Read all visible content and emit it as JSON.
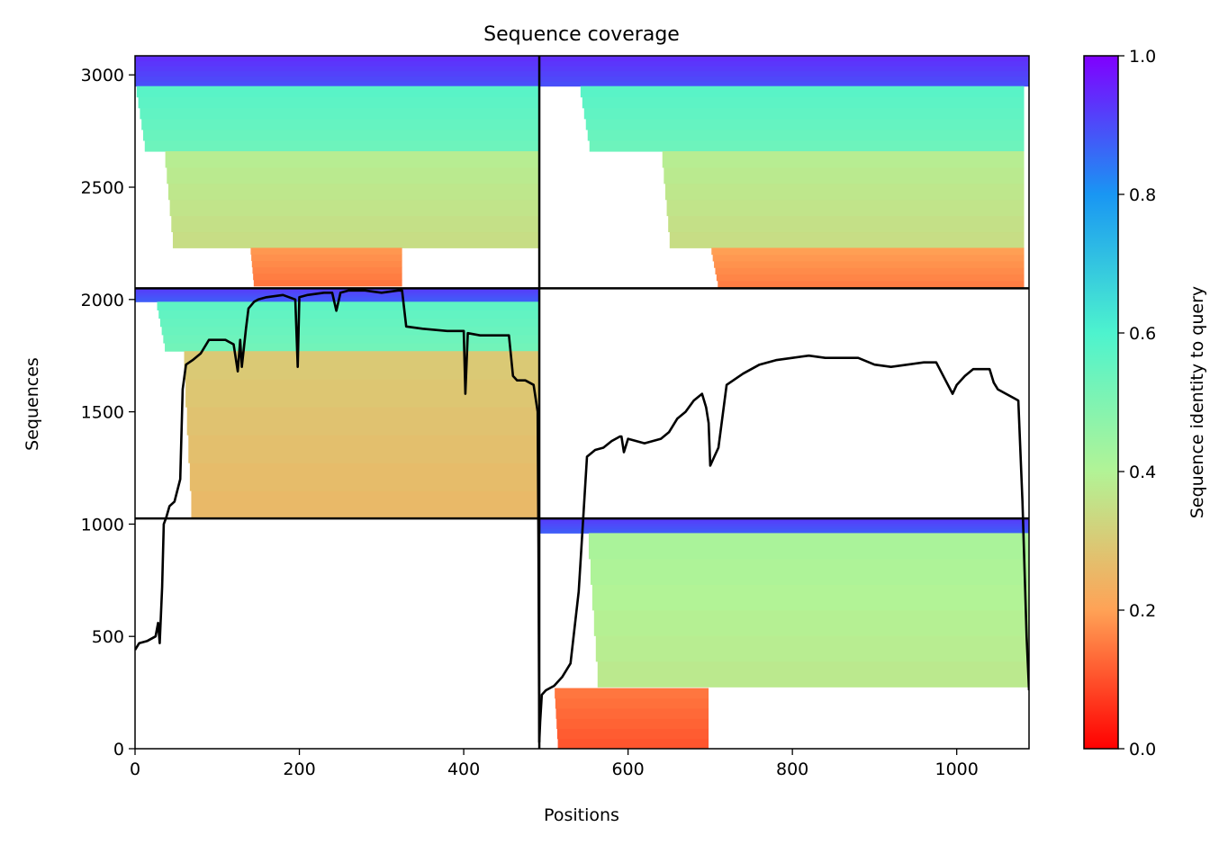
{
  "chart_data": {
    "type": "heatmap",
    "title": "Sequence coverage",
    "xlabel": "Positions",
    "ylabel": "Sequences",
    "xlim": [
      0,
      1088
    ],
    "ylim": [
      0,
      3085
    ],
    "xticks": [
      0,
      200,
      400,
      600,
      800,
      1000
    ],
    "yticks": [
      0,
      500,
      1000,
      1500,
      2000,
      2500,
      3000
    ],
    "colorbar": {
      "label": "Sequence identity to query",
      "range": [
        0.0,
        1.0
      ],
      "ticks": [
        0.0,
        0.2,
        0.4,
        0.6,
        0.8,
        1.0
      ],
      "colormap": "rainbow_r",
      "colors": [
        "#ff0000",
        "#ffa256",
        "#b2f396",
        "#4df3ce",
        "#1996f3",
        "#8000ff"
      ]
    },
    "chain_boundaries": {
      "x": 492,
      "y": [
        1025,
        2050
      ]
    },
    "msa_blocks": [
      {
        "name": "block-top-left",
        "x0": 0,
        "x1": 492,
        "y0": 2050,
        "y1": 3085,
        "bands": [
          {
            "y0": 2950,
            "y1": 3085,
            "identity": 0.92,
            "x0": 0,
            "x1": 492
          },
          {
            "y0": 2660,
            "y1": 2950,
            "identity": 0.56,
            "x0": 0,
            "x1": 492
          },
          {
            "y0": 2230,
            "y1": 2660,
            "identity": 0.37,
            "x0": 35,
            "x1": 492
          },
          {
            "y0": 2060,
            "y1": 2230,
            "identity": 0.17,
            "x0": 140,
            "x1": 325
          }
        ]
      },
      {
        "name": "block-top-right",
        "x0": 492,
        "x1": 1088,
        "y0": 2050,
        "y1": 3085,
        "bands": [
          {
            "y0": 2950,
            "y1": 3085,
            "identity": 0.92,
            "x0": 492,
            "x1": 1088
          },
          {
            "y0": 2660,
            "y1": 2950,
            "identity": 0.56,
            "x0": 540,
            "x1": 1082
          },
          {
            "y0": 2230,
            "y1": 2660,
            "identity": 0.37,
            "x0": 640,
            "x1": 1082
          },
          {
            "y0": 2055,
            "y1": 2230,
            "identity": 0.18,
            "x0": 700,
            "x1": 1082
          }
        ]
      },
      {
        "name": "block-middle-left",
        "x0": 0,
        "x1": 492,
        "y0": 1025,
        "y1": 2050,
        "bands": [
          {
            "y0": 1990,
            "y1": 2050,
            "identity": 0.9,
            "x0": 0,
            "x1": 492
          },
          {
            "y0": 1770,
            "y1": 1990,
            "identity": 0.55,
            "x0": 25,
            "x1": 492
          },
          {
            "y0": 1025,
            "y1": 1770,
            "identity": 0.28,
            "x0": 58,
            "x1": 492
          }
        ]
      },
      {
        "name": "block-bottom-right",
        "x0": 492,
        "x1": 1088,
        "y0": 0,
        "y1": 1025,
        "bands": [
          {
            "y0": 960,
            "y1": 1025,
            "identity": 0.9,
            "x0": 492,
            "x1": 1088
          },
          {
            "y0": 275,
            "y1": 960,
            "identity": 0.4,
            "x0": 550,
            "x1": 1088
          },
          {
            "y0": 0,
            "y1": 270,
            "identity": 0.13,
            "x0": 510,
            "x1": 698
          }
        ]
      }
    ],
    "coverage_line": {
      "color": "#000000",
      "x": [
        0,
        5,
        15,
        25,
        28,
        30,
        33,
        35,
        38,
        42,
        48,
        55,
        58,
        62,
        70,
        80,
        90,
        95,
        110,
        120,
        125,
        128,
        130,
        135,
        138,
        145,
        150,
        160,
        180,
        195,
        198,
        200,
        210,
        230,
        240,
        245,
        250,
        260,
        280,
        300,
        320,
        325,
        330,
        350,
        380,
        400,
        402,
        405,
        420,
        440,
        455,
        460,
        465,
        475,
        485,
        490,
        491,
        492,
        493,
        495,
        500,
        510,
        520,
        530,
        540,
        545,
        550,
        560,
        570,
        580,
        590,
        592,
        595,
        600,
        620,
        640,
        650,
        660,
        670,
        680,
        690,
        695,
        698,
        700,
        705,
        710,
        720,
        740,
        760,
        780,
        800,
        820,
        840,
        860,
        880,
        900,
        920,
        940,
        960,
        975,
        985,
        995,
        1000,
        1010,
        1020,
        1030,
        1040,
        1045,
        1050,
        1060,
        1070,
        1075,
        1080,
        1085,
        1088
      ],
      "y": [
        440,
        470,
        480,
        500,
        560,
        470,
        720,
        1000,
        1030,
        1080,
        1100,
        1200,
        1600,
        1710,
        1730,
        1760,
        1820,
        1820,
        1820,
        1800,
        1680,
        1820,
        1700,
        1870,
        1960,
        1990,
        2000,
        2010,
        2020,
        2000,
        1700,
        2010,
        2020,
        2030,
        2030,
        1950,
        2030,
        2040,
        2040,
        2030,
        2040,
        2040,
        1880,
        1870,
        1860,
        1860,
        1580,
        1850,
        1840,
        1840,
        1840,
        1660,
        1640,
        1640,
        1620,
        1500,
        900,
        30,
        120,
        240,
        260,
        280,
        320,
        380,
        700,
        1000,
        1300,
        1330,
        1340,
        1370,
        1390,
        1390,
        1320,
        1380,
        1360,
        1380,
        1410,
        1470,
        1500,
        1550,
        1580,
        1520,
        1450,
        1260,
        1300,
        1340,
        1620,
        1670,
        1710,
        1730,
        1740,
        1750,
        1740,
        1740,
        1740,
        1710,
        1700,
        1710,
        1720,
        1720,
        1650,
        1580,
        1620,
        1660,
        1690,
        1690,
        1690,
        1630,
        1600,
        1580,
        1560,
        1550,
        1100,
        500,
        260
      ]
    }
  }
}
